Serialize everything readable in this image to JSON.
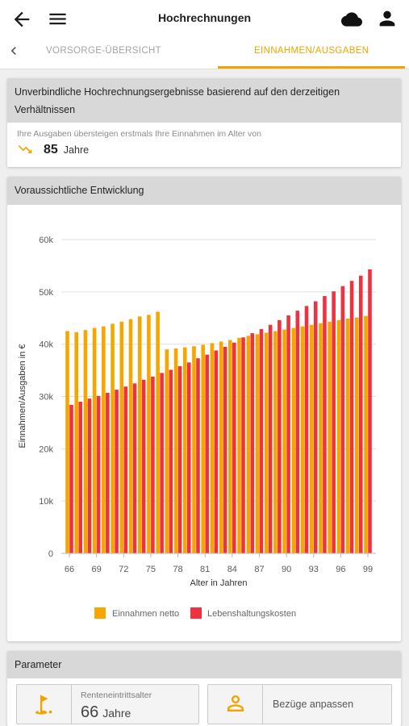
{
  "app_bar": {
    "title": "Hochrechnungen",
    "icons": {
      "back": "arrow-left-icon",
      "menu": "menu-icon",
      "cloud": "cloud-icon",
      "account": "account-icon"
    }
  },
  "tabs": {
    "back_icon": "chevron-left-icon",
    "items": [
      {
        "label": "VORSORGE-ÜBERSICHT",
        "active": false
      },
      {
        "label": "EINNAHMEN/AUSGABEN",
        "active": true
      }
    ]
  },
  "colors": {
    "accent": "#F2A300",
    "income": "#F7A600",
    "costs": "#EE3340",
    "card_header": "#D8D8D8",
    "page_bg": "#EFEFEF"
  },
  "summary_card": {
    "header": "Unverbindliche Hochrechnungsergebnisse basierend auf den derzeitigen Verhältnissen",
    "note": "Ihre Ausgaben übersteigen erstmals Ihre Einnahmen im Alter von",
    "icon": "trending-down-icon",
    "age": "85",
    "unit": "Jahre"
  },
  "chart_data": {
    "type": "bar",
    "title": "Voraussichtliche Entwicklung",
    "xlabel": "Alter in Jahren",
    "ylabel": "Einnahmen/Ausgaben in €",
    "ylim": [
      0,
      60000
    ],
    "y_tick_values": [
      0,
      10000,
      20000,
      30000,
      40000,
      50000,
      60000
    ],
    "y_tick_labels": [
      "0",
      "10k",
      "20k",
      "30k",
      "40k",
      "50k",
      "60k"
    ],
    "x_tick_labels": [
      "66",
      "69",
      "72",
      "75",
      "78",
      "81",
      "84",
      "87",
      "90",
      "93",
      "96",
      "99"
    ],
    "categories": [
      66,
      67,
      68,
      69,
      70,
      71,
      72,
      73,
      74,
      75,
      76,
      77,
      78,
      79,
      80,
      81,
      82,
      83,
      84,
      85,
      86,
      87,
      88,
      89,
      90,
      91,
      92,
      93,
      94,
      95,
      96,
      97,
      98,
      99
    ],
    "series": [
      {
        "name": "Einnahmen netto",
        "color": "#F7A600",
        "values": [
          42500,
          42300,
          42700,
          43100,
          43400,
          43900,
          44300,
          44800,
          45300,
          45600,
          46200,
          39000,
          39200,
          39400,
          39600,
          39900,
          40200,
          40500,
          40800,
          41200,
          41600,
          41900,
          42200,
          42500,
          42800,
          43100,
          43400,
          43700,
          44000,
          44300,
          44600,
          44900,
          45100,
          45400
        ]
      },
      {
        "name": "Lebenshaltungskosten",
        "color": "#EE3340",
        "values": [
          28400,
          29000,
          29600,
          30100,
          30700,
          31300,
          31900,
          32500,
          33200,
          33800,
          34500,
          35100,
          35800,
          36500,
          37300,
          38000,
          38800,
          39500,
          40300,
          41300,
          42100,
          42900,
          43700,
          44600,
          45500,
          46400,
          47300,
          48200,
          49200,
          50100,
          51100,
          52100,
          53100,
          54300
        ]
      }
    ],
    "grid": "horizontal",
    "legend": "bottom-center"
  },
  "parameter_card": {
    "header": "Parameter",
    "retirement": {
      "icon": "golf-course-icon",
      "label": "Renteneintrittsalter",
      "value": "66",
      "unit": "Jahre"
    },
    "adjust": {
      "icon": "person-outline-icon",
      "label": "Bezüge anpassen"
    }
  }
}
